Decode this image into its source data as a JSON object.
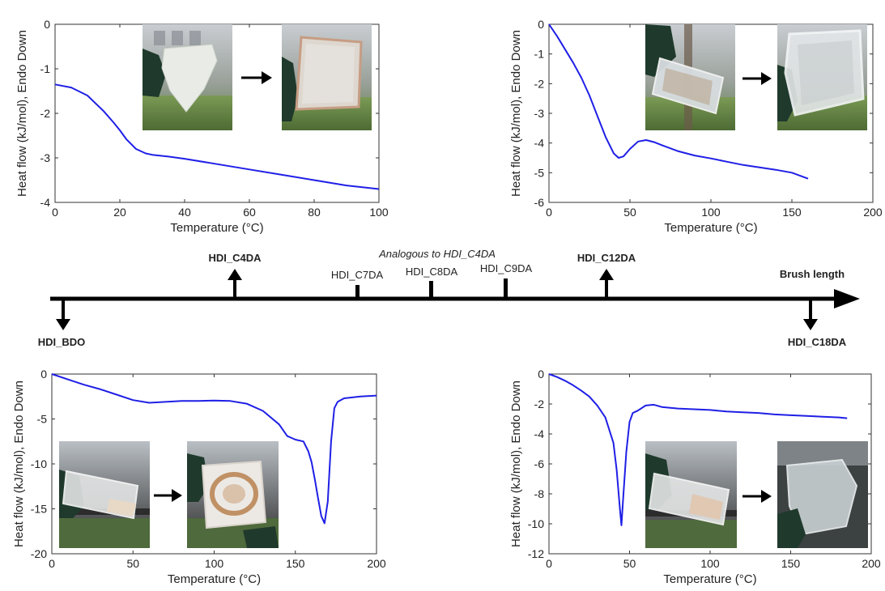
{
  "colors": {
    "curve": "#1f1fe6",
    "axis": "#333333",
    "timeline": "#000000"
  },
  "chart_data": [
    {
      "type": "line",
      "sample": "HDI_C4DA",
      "xlabel": "Temperature (°C)",
      "ylabel": "Heat flow (kJ/mol), Endo Down",
      "xlim": [
        0,
        100
      ],
      "ylim": [
        -4,
        0
      ],
      "xticks": [
        0,
        20,
        40,
        60,
        80,
        100
      ],
      "yticks": [
        0,
        -1,
        -2,
        -3,
        -4
      ],
      "grid": false,
      "series": [
        {
          "x": [
            0,
            5,
            10,
            15,
            18,
            20,
            22,
            25,
            28,
            30,
            35,
            40,
            50,
            60,
            70,
            80,
            90,
            100
          ],
          "y": [
            -1.35,
            -1.42,
            -1.6,
            -1.95,
            -2.2,
            -2.38,
            -2.58,
            -2.8,
            -2.9,
            -2.93,
            -2.97,
            -3.02,
            -3.14,
            -3.26,
            -3.38,
            -3.5,
            -3.62,
            -3.7
          ]
        }
      ],
      "photos": [
        "film-before-photo",
        "film-after-photo"
      ]
    },
    {
      "type": "line",
      "sample": "HDI_C12DA",
      "xlabel": "Temperature (°C)",
      "ylabel": "Heat flow (kJ/mol), Endo Down",
      "xlim": [
        0,
        200
      ],
      "ylim": [
        -6,
        0
      ],
      "xticks": [
        0,
        50,
        100,
        150,
        200
      ],
      "yticks": [
        0,
        -1,
        -2,
        -3,
        -4,
        -5,
        -6
      ],
      "grid": false,
      "series": [
        {
          "x": [
            0,
            5,
            10,
            15,
            20,
            25,
            30,
            35,
            40,
            43,
            46,
            50,
            55,
            60,
            65,
            70,
            80,
            90,
            100,
            110,
            120,
            130,
            140,
            150,
            160
          ],
          "y": [
            0,
            -0.4,
            -0.85,
            -1.3,
            -1.8,
            -2.4,
            -3.1,
            -3.8,
            -4.35,
            -4.5,
            -4.45,
            -4.2,
            -3.95,
            -3.9,
            -3.97,
            -4.08,
            -4.28,
            -4.42,
            -4.52,
            -4.63,
            -4.74,
            -4.82,
            -4.9,
            -5.0,
            -5.2
          ]
        }
      ],
      "photos": [
        "vial-photo",
        "film-photo"
      ]
    },
    {
      "type": "line",
      "sample": "HDI_BDO",
      "xlabel": "Temperature (°C)",
      "ylabel": "Heat flow (kJ/mol), Endo Down",
      "xlim": [
        0,
        200
      ],
      "ylim": [
        -20,
        0
      ],
      "xticks": [
        0,
        50,
        100,
        150,
        200
      ],
      "yticks": [
        0,
        -5,
        -10,
        -15,
        -20
      ],
      "grid": false,
      "series": [
        {
          "x": [
            0,
            10,
            20,
            30,
            40,
            50,
            60,
            70,
            80,
            90,
            100,
            110,
            120,
            130,
            140,
            145,
            150,
            155,
            158,
            160,
            162,
            164,
            166,
            168,
            170,
            172,
            174,
            176,
            180,
            190,
            200
          ],
          "y": [
            0,
            -0.6,
            -1.2,
            -1.7,
            -2.3,
            -2.9,
            -3.2,
            -3.1,
            -3.0,
            -3.0,
            -2.95,
            -3.0,
            -3.3,
            -4.1,
            -5.6,
            -6.9,
            -7.3,
            -7.5,
            -8.6,
            -9.8,
            -11.7,
            -13.8,
            -15.8,
            -16.6,
            -14.2,
            -7.5,
            -3.8,
            -3.1,
            -2.7,
            -2.5,
            -2.4
          ]
        }
      ],
      "photos": [
        "vial-photo",
        "film-photo"
      ]
    },
    {
      "type": "line",
      "sample": "HDI_C18DA",
      "xlabel": "Temperature (°C)",
      "ylabel": "Heat flow (kJ/mol), Endo Down",
      "xlim": [
        0,
        200
      ],
      "ylim": [
        -12,
        0
      ],
      "xticks": [
        0,
        50,
        100,
        150,
        200
      ],
      "yticks": [
        0,
        -2,
        -4,
        -6,
        -8,
        -10,
        -12
      ],
      "grid": false,
      "series": [
        {
          "x": [
            0,
            5,
            10,
            15,
            20,
            25,
            30,
            35,
            40,
            42,
            44,
            45,
            46,
            48,
            50,
            52,
            55,
            60,
            65,
            70,
            80,
            90,
            100,
            110,
            120,
            130,
            140,
            150,
            160,
            170,
            180,
            185
          ],
          "y": [
            0,
            -0.2,
            -0.45,
            -0.75,
            -1.1,
            -1.5,
            -2.1,
            -2.9,
            -4.6,
            -6.4,
            -9.0,
            -10.1,
            -8.4,
            -5.2,
            -3.2,
            -2.6,
            -2.45,
            -2.1,
            -2.05,
            -2.2,
            -2.3,
            -2.35,
            -2.4,
            -2.5,
            -2.55,
            -2.6,
            -2.7,
            -2.75,
            -2.8,
            -2.85,
            -2.9,
            -2.95
          ]
        }
      ],
      "photos": [
        "vial-photo",
        "film-photo"
      ]
    }
  ],
  "timeline": {
    "end_label": "Brush length",
    "note": "Analogous to HDI_C4DA",
    "markers": [
      {
        "label": "HDI_BDO",
        "kind": "down",
        "bold": true
      },
      {
        "label": "HDI_C4DA",
        "kind": "up",
        "bold": true
      },
      {
        "label": "HDI_C7DA",
        "kind": "tick",
        "bold": false
      },
      {
        "label": "HDI_C8DA",
        "kind": "tick",
        "bold": false
      },
      {
        "label": "HDI_C9DA",
        "kind": "tick",
        "bold": false
      },
      {
        "label": "HDI_C12DA",
        "kind": "up",
        "bold": true
      },
      {
        "label": "HDI_C18DA",
        "kind": "down",
        "bold": true
      }
    ]
  }
}
